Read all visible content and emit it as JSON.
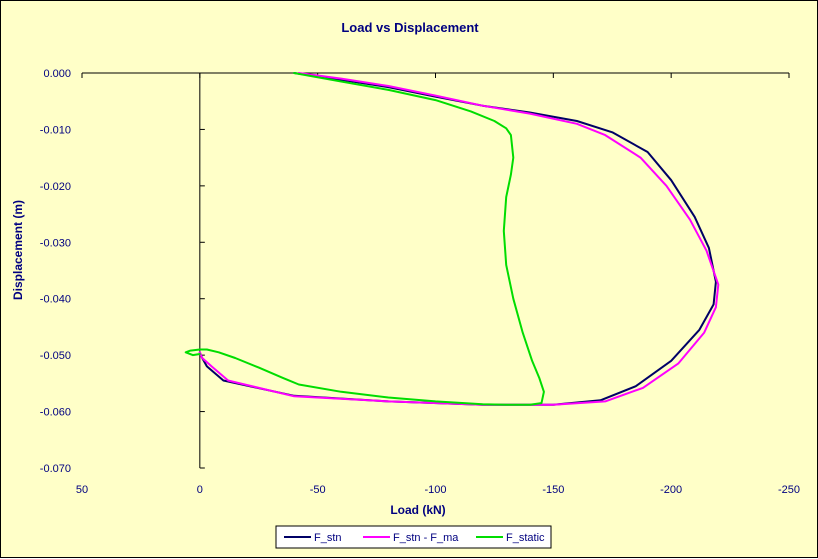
{
  "colors": {
    "background": "#FFFFC8",
    "axis": "#000000",
    "text": "#000080"
  },
  "chart_data": {
    "type": "line",
    "title": "Load vs Displacement",
    "xlabel": "Load (kN)",
    "ylabel": "Displacement (m)",
    "xlim": [
      50,
      -250
    ],
    "ylim": [
      -0.07,
      0.0
    ],
    "x_reversed": true,
    "x_ticks": [
      50,
      0,
      -50,
      -100,
      -150,
      -200,
      -250
    ],
    "x_tick_labels": [
      "50",
      "0",
      "-50",
      "-100",
      "-150",
      "-200",
      "-250"
    ],
    "y_ticks": [
      0.0,
      -0.01,
      -0.02,
      -0.03,
      -0.04,
      -0.05,
      -0.06,
      -0.07
    ],
    "y_tick_labels": [
      "0.000",
      "-0.010",
      "-0.020",
      "-0.030",
      "-0.040",
      "-0.050",
      "-0.060",
      "-0.070"
    ],
    "grid": false,
    "legend_position": "bottom",
    "series": [
      {
        "name": "F_stn",
        "color": "#000066",
        "x": [
          -40,
          -60,
          -80,
          -100,
          -120,
          -140,
          -160,
          -175,
          -190,
          -200,
          -210,
          -216,
          -219,
          -218,
          -212,
          -200,
          -185,
          -170,
          -150,
          -120,
          -80,
          -40,
          -10,
          -3,
          -1,
          0
        ],
        "y": [
          0.0,
          -0.0012,
          -0.0025,
          -0.0042,
          -0.0058,
          -0.007,
          -0.0085,
          -0.0105,
          -0.014,
          -0.019,
          -0.0255,
          -0.031,
          -0.037,
          -0.041,
          -0.0455,
          -0.051,
          -0.0555,
          -0.058,
          -0.0588,
          -0.0588,
          -0.0582,
          -0.0572,
          -0.0545,
          -0.052,
          -0.0505,
          -0.0495
        ]
      },
      {
        "name": "F_stn - F_ma",
        "color": "#FF00FF",
        "x": [
          -42,
          -60,
          -80,
          -100,
          -120,
          -140,
          -160,
          -172,
          -187,
          -198,
          -208,
          -215,
          -220,
          -219,
          -214,
          -203,
          -188,
          -172,
          -150,
          -120,
          -80,
          -40,
          -12,
          -5,
          -1,
          0
        ],
        "y": [
          0.0,
          -0.001,
          -0.0023,
          -0.004,
          -0.0058,
          -0.0072,
          -0.009,
          -0.011,
          -0.015,
          -0.02,
          -0.026,
          -0.0315,
          -0.0375,
          -0.0415,
          -0.046,
          -0.0515,
          -0.0558,
          -0.0582,
          -0.0588,
          -0.0588,
          -0.0582,
          -0.0573,
          -0.0545,
          -0.052,
          -0.0505,
          -0.0495
        ]
      },
      {
        "name": "F_static",
        "color": "#00DD00",
        "x": [
          -40,
          -60,
          -80,
          -100,
          -115,
          -125,
          -130,
          -132,
          -133,
          -132,
          -130,
          -129,
          -130,
          -133,
          -137,
          -141,
          -144,
          -146,
          -145,
          -140,
          -130,
          -120,
          -100,
          -80,
          -60,
          -42,
          -35,
          -25,
          -15,
          -8,
          -3,
          0,
          4,
          6,
          3,
          0
        ],
        "y": [
          0.0,
          -0.0015,
          -0.003,
          -0.0048,
          -0.0068,
          -0.0085,
          -0.0098,
          -0.011,
          -0.015,
          -0.018,
          -0.022,
          -0.028,
          -0.034,
          -0.04,
          -0.046,
          -0.051,
          -0.054,
          -0.0565,
          -0.0585,
          -0.0588,
          -0.0588,
          -0.0587,
          -0.0582,
          -0.0575,
          -0.0565,
          -0.0552,
          -0.054,
          -0.0522,
          -0.0505,
          -0.0495,
          -0.049,
          -0.049,
          -0.0492,
          -0.0495,
          -0.05,
          -0.0498
        ]
      }
    ]
  }
}
